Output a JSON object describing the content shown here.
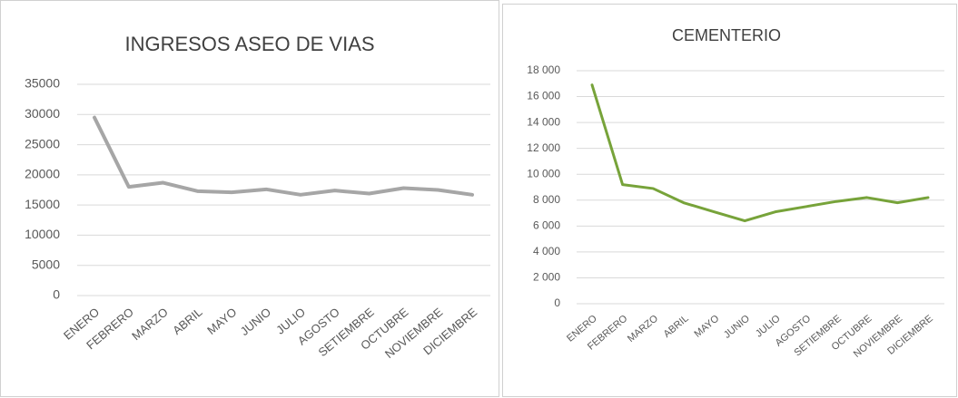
{
  "chart_data": [
    {
      "type": "line",
      "title": "INGRESOS ASEO DE VIAS",
      "categories": [
        "ENERO",
        "FEBRERO",
        "MARZO",
        "ABRIL",
        "MAYO",
        "JUNIO",
        "JULIO",
        "AGOSTO",
        "SETIEMBRE",
        "OCTUBRE",
        "NOVIEMBRE",
        "DICIEMBRE"
      ],
      "series": [
        {
          "name": null,
          "color": "#a6a6a6",
          "values": [
            29500,
            18000,
            18700,
            17300,
            17100,
            17600,
            16700,
            17400,
            16900,
            17800,
            17500,
            16700
          ]
        }
      ],
      "ylim": [
        0,
        35000
      ],
      "yticks": [
        0,
        5000,
        10000,
        15000,
        20000,
        25000,
        30000,
        35000
      ],
      "grid": true
    },
    {
      "type": "line",
      "title": "CEMENTERIO",
      "categories": [
        "ENERO",
        "FEBRERO",
        "MARZO",
        "ABRIL",
        "MAYO",
        "JUNIO",
        "JULIO",
        "AGOSTO",
        "SETIEMBRE",
        "OCTUBRE",
        "NOVIEMBRE",
        "DICIEMBRE"
      ],
      "series": [
        {
          "name": null,
          "color": "#77a33a",
          "values": [
            16900,
            9200,
            8900,
            7800,
            7100,
            6400,
            7100,
            7500,
            7900,
            8200,
            7800,
            8200
          ]
        }
      ],
      "ylim": [
        0,
        18000
      ],
      "yticks": [
        0,
        {
          "value": 2000,
          "label": "2 000"
        },
        {
          "value": 4000,
          "label": "4 000"
        },
        {
          "value": 6000,
          "label": "6 000"
        },
        {
          "value": 8000,
          "label": "8 000"
        },
        {
          "value": 10000,
          "label": "10 000"
        },
        {
          "value": 12000,
          "label": "12 000"
        },
        {
          "value": 14000,
          "label": "14 000"
        },
        {
          "value": 16000,
          "label": "16 000"
        },
        {
          "value": 18000,
          "label": "18 000"
        }
      ],
      "grid": true
    }
  ]
}
